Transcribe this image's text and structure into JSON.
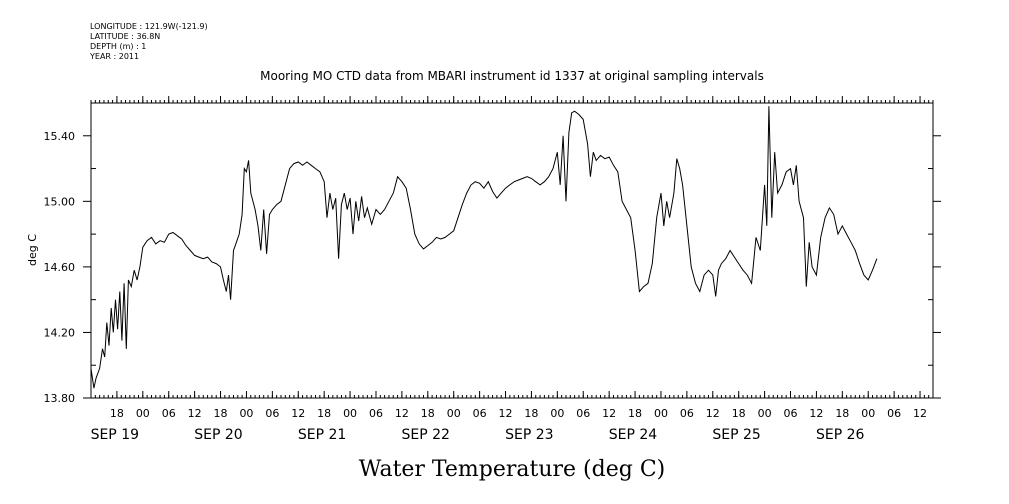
{
  "header": {
    "longitude": "LONGITUDE : 121.9W(-121.9)",
    "latitude": "LATITUDE : 36.8N",
    "depth": "DEPTH (m) : 1",
    "year": "YEAR : 2011"
  },
  "chart_data": {
    "type": "line",
    "title": "Mooring MO CTD data from MBARI instrument id 1337 at original sampling intervals",
    "xlabel": "Water Temperature (deg C)",
    "ylabel": "deg C",
    "ylim": [
      13.8,
      15.6
    ],
    "y_ticks": [
      "13.80",
      "14.20",
      "14.60",
      "15.00",
      "15.40"
    ],
    "x_start": "2011-09-18T12:00",
    "x_end": "2011-09-26T15:00",
    "hour_ticks": [
      {
        "x": "2011-09-18T18:00",
        "label": "18"
      },
      {
        "x": "2011-09-19T00:00",
        "label": "00"
      },
      {
        "x": "2011-09-19T06:00",
        "label": "06"
      },
      {
        "x": "2011-09-19T12:00",
        "label": "12"
      },
      {
        "x": "2011-09-19T18:00",
        "label": "18"
      },
      {
        "x": "2011-09-20T00:00",
        "label": "00"
      },
      {
        "x": "2011-09-20T06:00",
        "label": "06"
      },
      {
        "x": "2011-09-20T12:00",
        "label": "12"
      },
      {
        "x": "2011-09-20T18:00",
        "label": "18"
      },
      {
        "x": "2011-09-21T00:00",
        "label": "00"
      },
      {
        "x": "2011-09-21T06:00",
        "label": "06"
      },
      {
        "x": "2011-09-21T12:00",
        "label": "12"
      },
      {
        "x": "2011-09-21T18:00",
        "label": "18"
      },
      {
        "x": "2011-09-22T00:00",
        "label": "00"
      },
      {
        "x": "2011-09-22T06:00",
        "label": "06"
      },
      {
        "x": "2011-09-22T12:00",
        "label": "12"
      },
      {
        "x": "2011-09-22T18:00",
        "label": "18"
      },
      {
        "x": "2011-09-23T00:00",
        "label": "00"
      },
      {
        "x": "2011-09-23T06:00",
        "label": "06"
      },
      {
        "x": "2011-09-23T12:00",
        "label": "12"
      },
      {
        "x": "2011-09-23T18:00",
        "label": "18"
      },
      {
        "x": "2011-09-24T00:00",
        "label": "00"
      },
      {
        "x": "2011-09-24T06:00",
        "label": "06"
      },
      {
        "x": "2011-09-24T12:00",
        "label": "12"
      },
      {
        "x": "2011-09-24T18:00",
        "label": "18"
      },
      {
        "x": "2011-09-25T00:00",
        "label": "00"
      },
      {
        "x": "2011-09-25T06:00",
        "label": "06"
      },
      {
        "x": "2011-09-25T12:00",
        "label": "12"
      },
      {
        "x": "2011-09-25T18:00",
        "label": "18"
      },
      {
        "x": "2011-09-26T00:00",
        "label": "00"
      },
      {
        "x": "2011-09-26T06:00",
        "label": "06"
      },
      {
        "x": "2011-09-26T12:00",
        "label": "12"
      }
    ],
    "day_labels": [
      {
        "x": "2011-09-19T00:00",
        "label": "SEP 19"
      },
      {
        "x": "2011-09-20T00:00",
        "label": "SEP 20"
      },
      {
        "x": "2011-09-21T00:00",
        "label": "SEP 21"
      },
      {
        "x": "2011-09-22T00:00",
        "label": "SEP 22"
      },
      {
        "x": "2011-09-23T00:00",
        "label": "SEP 23"
      },
      {
        "x": "2011-09-24T00:00",
        "label": "SEP 24"
      },
      {
        "x": "2011-09-25T00:00",
        "label": "SEP 25"
      },
      {
        "x": "2011-09-26T00:00",
        "label": "SEP 26"
      }
    ],
    "series": [
      {
        "points": [
          [
            "2011-09-18T12:00",
            13.98
          ],
          [
            "2011-09-18T12:40",
            13.86
          ],
          [
            "2011-09-18T13:10",
            13.92
          ],
          [
            "2011-09-18T14:00",
            13.98
          ],
          [
            "2011-09-18T14:40",
            14.1
          ],
          [
            "2011-09-18T15:10",
            14.05
          ],
          [
            "2011-09-18T15:40",
            14.26
          ],
          [
            "2011-09-18T16:10",
            14.12
          ],
          [
            "2011-09-18T16:40",
            14.35
          ],
          [
            "2011-09-18T17:10",
            14.2
          ],
          [
            "2011-09-18T17:40",
            14.4
          ],
          [
            "2011-09-18T18:10",
            14.22
          ],
          [
            "2011-09-18T18:40",
            14.45
          ],
          [
            "2011-09-18T19:10",
            14.15
          ],
          [
            "2011-09-18T19:40",
            14.5
          ],
          [
            "2011-09-18T20:10",
            14.1
          ],
          [
            "2011-09-18T20:40",
            14.52
          ],
          [
            "2011-09-18T21:20",
            14.48
          ],
          [
            "2011-09-18T22:00",
            14.58
          ],
          [
            "2011-09-18T22:40",
            14.52
          ],
          [
            "2011-09-18T23:20",
            14.6
          ],
          [
            "2011-09-19T00:00",
            14.72
          ],
          [
            "2011-09-19T01:00",
            14.76
          ],
          [
            "2011-09-19T02:00",
            14.78
          ],
          [
            "2011-09-19T03:00",
            14.74
          ],
          [
            "2011-09-19T04:00",
            14.76
          ],
          [
            "2011-09-19T05:00",
            14.75
          ],
          [
            "2011-09-19T06:00",
            14.8
          ],
          [
            "2011-09-19T07:00",
            14.81
          ],
          [
            "2011-09-19T08:00",
            14.79
          ],
          [
            "2011-09-19T09:00",
            14.77
          ],
          [
            "2011-09-19T10:00",
            14.73
          ],
          [
            "2011-09-19T11:00",
            14.7
          ],
          [
            "2011-09-19T12:00",
            14.67
          ],
          [
            "2011-09-19T13:00",
            14.66
          ],
          [
            "2011-09-19T14:00",
            14.65
          ],
          [
            "2011-09-19T15:00",
            14.66
          ],
          [
            "2011-09-19T16:00",
            14.63
          ],
          [
            "2011-09-19T17:00",
            14.62
          ],
          [
            "2011-09-19T18:00",
            14.6
          ],
          [
            "2011-09-19T18:40",
            14.52
          ],
          [
            "2011-09-19T19:20",
            14.45
          ],
          [
            "2011-09-19T19:50",
            14.55
          ],
          [
            "2011-09-19T20:20",
            14.4
          ],
          [
            "2011-09-19T21:00",
            14.7
          ],
          [
            "2011-09-19T21:40",
            14.75
          ],
          [
            "2011-09-19T22:20",
            14.8
          ],
          [
            "2011-09-19T23:00",
            14.92
          ],
          [
            "2011-09-19T23:30",
            15.2
          ],
          [
            "2011-09-20T00:00",
            15.18
          ],
          [
            "2011-09-20T00:30",
            15.25
          ],
          [
            "2011-09-20T01:00",
            15.05
          ],
          [
            "2011-09-20T02:00",
            14.95
          ],
          [
            "2011-09-20T02:40",
            14.85
          ],
          [
            "2011-09-20T03:20",
            14.7
          ],
          [
            "2011-09-20T04:00",
            14.95
          ],
          [
            "2011-09-20T04:40",
            14.68
          ],
          [
            "2011-09-20T05:20",
            14.92
          ],
          [
            "2011-09-20T06:00",
            14.95
          ],
          [
            "2011-09-20T07:00",
            14.98
          ],
          [
            "2011-09-20T08:00",
            15.0
          ],
          [
            "2011-09-20T09:00",
            15.1
          ],
          [
            "2011-09-20T10:00",
            15.2
          ],
          [
            "2011-09-20T11:00",
            15.23
          ],
          [
            "2011-09-20T12:00",
            15.24
          ],
          [
            "2011-09-20T13:00",
            15.22
          ],
          [
            "2011-09-20T14:00",
            15.24
          ],
          [
            "2011-09-20T15:00",
            15.22
          ],
          [
            "2011-09-20T16:00",
            15.2
          ],
          [
            "2011-09-20T17:00",
            15.18
          ],
          [
            "2011-09-20T18:00",
            15.12
          ],
          [
            "2011-09-20T18:40",
            14.9
          ],
          [
            "2011-09-20T19:20",
            15.05
          ],
          [
            "2011-09-20T20:00",
            14.95
          ],
          [
            "2011-09-20T20:40",
            15.02
          ],
          [
            "2011-09-20T21:20",
            14.65
          ],
          [
            "2011-09-20T22:00",
            14.98
          ],
          [
            "2011-09-20T22:40",
            15.05
          ],
          [
            "2011-09-20T23:20",
            14.95
          ],
          [
            "2011-09-21T00:00",
            15.02
          ],
          [
            "2011-09-21T00:40",
            14.8
          ],
          [
            "2011-09-21T01:20",
            15.0
          ],
          [
            "2011-09-21T02:00",
            14.88
          ],
          [
            "2011-09-21T02:40",
            15.03
          ],
          [
            "2011-09-21T03:20",
            14.9
          ],
          [
            "2011-09-21T04:00",
            14.96
          ],
          [
            "2011-09-21T05:00",
            14.86
          ],
          [
            "2011-09-21T06:00",
            14.95
          ],
          [
            "2011-09-21T07:00",
            14.92
          ],
          [
            "2011-09-21T08:00",
            14.95
          ],
          [
            "2011-09-21T09:00",
            15.0
          ],
          [
            "2011-09-21T10:00",
            15.05
          ],
          [
            "2011-09-21T11:00",
            15.15
          ],
          [
            "2011-09-21T12:00",
            15.12
          ],
          [
            "2011-09-21T13:00",
            15.08
          ],
          [
            "2011-09-21T14:00",
            14.95
          ],
          [
            "2011-09-21T15:00",
            14.8
          ],
          [
            "2011-09-21T16:00",
            14.74
          ],
          [
            "2011-09-21T17:00",
            14.71
          ],
          [
            "2011-09-21T18:00",
            14.73
          ],
          [
            "2011-09-21T19:00",
            14.75
          ],
          [
            "2011-09-21T20:00",
            14.78
          ],
          [
            "2011-09-21T21:00",
            14.77
          ],
          [
            "2011-09-21T22:00",
            14.78
          ],
          [
            "2011-09-21T23:00",
            14.8
          ],
          [
            "2011-09-22T00:00",
            14.82
          ],
          [
            "2011-09-22T01:00",
            14.9
          ],
          [
            "2011-09-22T02:00",
            14.98
          ],
          [
            "2011-09-22T03:00",
            15.05
          ],
          [
            "2011-09-22T04:00",
            15.1
          ],
          [
            "2011-09-22T05:00",
            15.12
          ],
          [
            "2011-09-22T06:00",
            15.11
          ],
          [
            "2011-09-22T07:00",
            15.08
          ],
          [
            "2011-09-22T08:00",
            15.12
          ],
          [
            "2011-09-22T09:00",
            15.06
          ],
          [
            "2011-09-22T10:00",
            15.02
          ],
          [
            "2011-09-22T11:00",
            15.05
          ],
          [
            "2011-09-22T12:00",
            15.08
          ],
          [
            "2011-09-22T13:00",
            15.1
          ],
          [
            "2011-09-22T14:00",
            15.12
          ],
          [
            "2011-09-22T15:00",
            15.13
          ],
          [
            "2011-09-22T16:00",
            15.14
          ],
          [
            "2011-09-22T17:00",
            15.15
          ],
          [
            "2011-09-22T18:00",
            15.14
          ],
          [
            "2011-09-22T19:00",
            15.12
          ],
          [
            "2011-09-22T20:00",
            15.1
          ],
          [
            "2011-09-22T21:00",
            15.12
          ],
          [
            "2011-09-22T22:00",
            15.15
          ],
          [
            "2011-09-22T23:00",
            15.2
          ],
          [
            "2011-09-23T00:00",
            15.3
          ],
          [
            "2011-09-23T00:40",
            15.1
          ],
          [
            "2011-09-23T01:20",
            15.4
          ],
          [
            "2011-09-23T02:00",
            15.0
          ],
          [
            "2011-09-23T02:40",
            15.42
          ],
          [
            "2011-09-23T03:20",
            15.54
          ],
          [
            "2011-09-23T04:00",
            15.55
          ],
          [
            "2011-09-23T05:00",
            15.53
          ],
          [
            "2011-09-23T06:00",
            15.5
          ],
          [
            "2011-09-23T07:00",
            15.35
          ],
          [
            "2011-09-23T07:40",
            15.15
          ],
          [
            "2011-09-23T08:20",
            15.3
          ],
          [
            "2011-09-23T09:00",
            15.25
          ],
          [
            "2011-09-23T10:00",
            15.28
          ],
          [
            "2011-09-23T11:00",
            15.26
          ],
          [
            "2011-09-23T12:00",
            15.27
          ],
          [
            "2011-09-23T13:00",
            15.22
          ],
          [
            "2011-09-23T14:00",
            15.18
          ],
          [
            "2011-09-23T15:00",
            15.0
          ],
          [
            "2011-09-23T16:00",
            14.95
          ],
          [
            "2011-09-23T17:00",
            14.9
          ],
          [
            "2011-09-23T18:00",
            14.7
          ],
          [
            "2011-09-23T19:00",
            14.45
          ],
          [
            "2011-09-23T20:00",
            14.48
          ],
          [
            "2011-09-23T21:00",
            14.5
          ],
          [
            "2011-09-23T22:00",
            14.62
          ],
          [
            "2011-09-23T23:00",
            14.9
          ],
          [
            "2011-09-24T00:00",
            15.05
          ],
          [
            "2011-09-24T00:40",
            14.85
          ],
          [
            "2011-09-24T01:20",
            15.0
          ],
          [
            "2011-09-24T02:00",
            14.9
          ],
          [
            "2011-09-24T03:00",
            15.05
          ],
          [
            "2011-09-24T03:40",
            15.26
          ],
          [
            "2011-09-24T04:20",
            15.2
          ],
          [
            "2011-09-24T05:00",
            15.1
          ],
          [
            "2011-09-24T06:00",
            14.85
          ],
          [
            "2011-09-24T07:00",
            14.6
          ],
          [
            "2011-09-24T08:00",
            14.5
          ],
          [
            "2011-09-24T09:00",
            14.45
          ],
          [
            "2011-09-24T10:00",
            14.55
          ],
          [
            "2011-09-24T11:00",
            14.58
          ],
          [
            "2011-09-24T12:00",
            14.55
          ],
          [
            "2011-09-24T12:40",
            14.42
          ],
          [
            "2011-09-24T13:20",
            14.58
          ],
          [
            "2011-09-24T14:00",
            14.62
          ],
          [
            "2011-09-24T15:00",
            14.65
          ],
          [
            "2011-09-24T16:00",
            14.7
          ],
          [
            "2011-09-24T17:00",
            14.66
          ],
          [
            "2011-09-24T18:00",
            14.62
          ],
          [
            "2011-09-24T19:00",
            14.58
          ],
          [
            "2011-09-24T20:00",
            14.55
          ],
          [
            "2011-09-24T21:00",
            14.5
          ],
          [
            "2011-09-24T22:00",
            14.78
          ],
          [
            "2011-09-24T23:00",
            14.7
          ],
          [
            "2011-09-25T00:00",
            15.1
          ],
          [
            "2011-09-25T00:30",
            14.85
          ],
          [
            "2011-09-25T01:00",
            15.58
          ],
          [
            "2011-09-25T01:40",
            14.9
          ],
          [
            "2011-09-25T02:20",
            15.3
          ],
          [
            "2011-09-25T03:00",
            15.05
          ],
          [
            "2011-09-25T04:00",
            15.1
          ],
          [
            "2011-09-25T05:00",
            15.18
          ],
          [
            "2011-09-25T06:00",
            15.2
          ],
          [
            "2011-09-25T06:40",
            15.1
          ],
          [
            "2011-09-25T07:20",
            15.22
          ],
          [
            "2011-09-25T08:00",
            15.0
          ],
          [
            "2011-09-25T09:00",
            14.9
          ],
          [
            "2011-09-25T09:40",
            14.48
          ],
          [
            "2011-09-25T10:20",
            14.75
          ],
          [
            "2011-09-25T11:00",
            14.6
          ],
          [
            "2011-09-25T12:00",
            14.55
          ],
          [
            "2011-09-25T13:00",
            14.78
          ],
          [
            "2011-09-25T14:00",
            14.9
          ],
          [
            "2011-09-25T15:00",
            14.96
          ],
          [
            "2011-09-25T16:00",
            14.92
          ],
          [
            "2011-09-25T17:00",
            14.8
          ],
          [
            "2011-09-25T18:00",
            14.85
          ],
          [
            "2011-09-25T19:00",
            14.8
          ],
          [
            "2011-09-25T20:00",
            14.75
          ],
          [
            "2011-09-25T21:00",
            14.7
          ],
          [
            "2011-09-25T22:00",
            14.62
          ],
          [
            "2011-09-25T23:00",
            14.55
          ],
          [
            "2011-09-26T00:00",
            14.52
          ],
          [
            "2011-09-26T01:00",
            14.58
          ],
          [
            "2011-09-26T02:00",
            14.65
          ]
        ]
      }
    ]
  }
}
